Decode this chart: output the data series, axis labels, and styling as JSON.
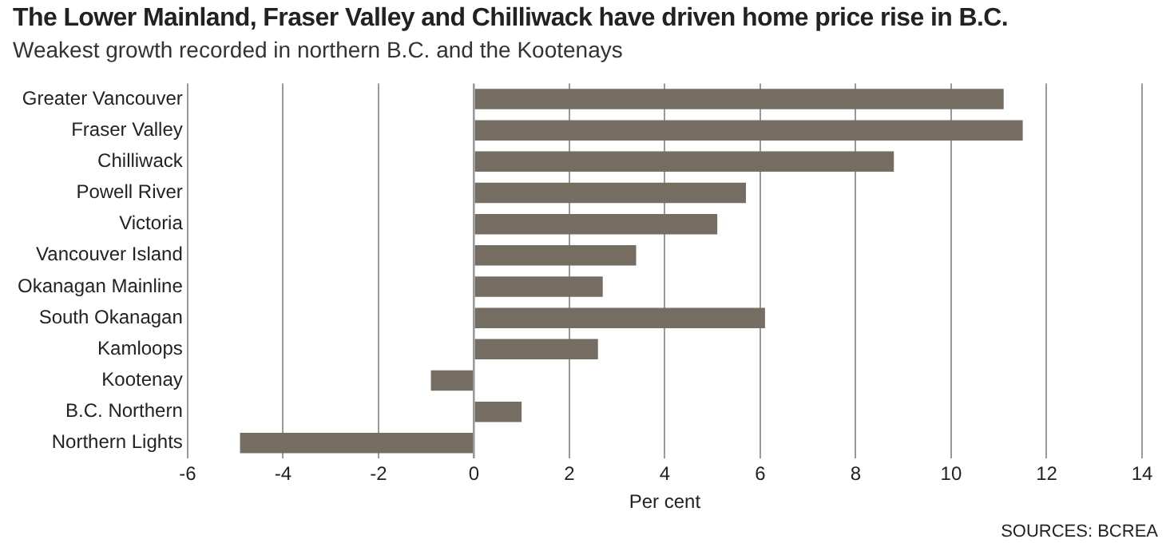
{
  "chart_data": {
    "type": "bar",
    "orientation": "horizontal",
    "title": "The Lower Mainland, Fraser Valley and Chilliwack have driven home price rise in B.C.",
    "subtitle": "Weakest growth recorded in northern B.C. and the Kootenays",
    "xlabel": "Per cent",
    "annotations": [
      "SOURCES: BCREA"
    ],
    "categories": [
      "Greater Vancouver",
      "Fraser Valley",
      "Chilliwack",
      "Powell River",
      "Victoria",
      "Vancouver Island",
      "Okanagan Mainline",
      "South Okanagan",
      "Kamloops",
      "Kootenay",
      "B.C. Northern",
      "Northern Lights"
    ],
    "values": [
      11.1,
      11.5,
      8.8,
      5.7,
      5.1,
      3.4,
      2.7,
      6.1,
      2.6,
      -0.9,
      1.0,
      -4.9
    ],
    "color": "#756d62",
    "xlim": [
      -6,
      14
    ],
    "xticks": [
      -6,
      -4,
      -2,
      0,
      2,
      4,
      6,
      8,
      10,
      12,
      14
    ],
    "grid": "x",
    "legend": false
  }
}
